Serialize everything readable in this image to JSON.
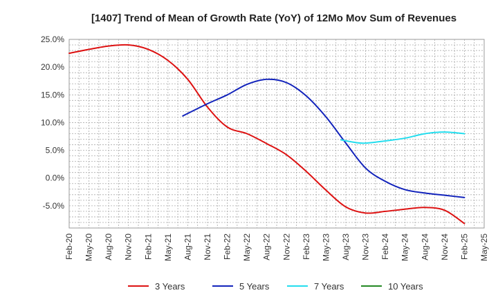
{
  "chart_data": {
    "type": "line",
    "title": "[1407]  Trend of Mean of Growth Rate (YoY) of 12Mo Mov Sum of Revenues",
    "xlabel": "",
    "ylabel": "",
    "x_tick_labels": [
      "Feb-20",
      "May-20",
      "Aug-20",
      "Nov-20",
      "Feb-21",
      "May-21",
      "Aug-21",
      "Nov-21",
      "Feb-22",
      "May-22",
      "Aug-22",
      "Nov-22",
      "Feb-23",
      "May-23",
      "Aug-23",
      "Nov-23",
      "Feb-24",
      "May-24",
      "Aug-24",
      "Nov-24",
      "Feb-25",
      "May-25"
    ],
    "y_tick_labels": [
      "25.0%",
      "20.0%",
      "15.0%",
      "10.0%",
      "5.0%",
      "0.0%",
      "-5.0%"
    ],
    "y_ticks": [
      25,
      20,
      15,
      10,
      5,
      0,
      -5
    ],
    "ylim": [
      -9,
      25
    ],
    "x_count": 22,
    "grid": true,
    "legend_position": "bottom",
    "series": [
      {
        "name": "3 Years",
        "color": "#dd1111",
        "points": [
          [
            0,
            22.5
          ],
          [
            1,
            23.2
          ],
          [
            2,
            23.8
          ],
          [
            3,
            24.0
          ],
          [
            4,
            23.2
          ],
          [
            5,
            21.2
          ],
          [
            6,
            17.8
          ],
          [
            7,
            12.8
          ],
          [
            8,
            9.2
          ],
          [
            9,
            8.0
          ],
          [
            10,
            6.2
          ],
          [
            11,
            4.2
          ],
          [
            12,
            1.2
          ],
          [
            13,
            -2.2
          ],
          [
            14,
            -5.2
          ],
          [
            15,
            -6.3
          ],
          [
            16,
            -6.0
          ],
          [
            17,
            -5.6
          ],
          [
            18,
            -5.3
          ],
          [
            19,
            -5.8
          ],
          [
            20,
            -8.2
          ]
        ]
      },
      {
        "name": "5 Years",
        "color": "#1122bb",
        "points": [
          [
            5.75,
            11.2
          ],
          [
            7,
            13.4
          ],
          [
            8,
            15.0
          ],
          [
            9,
            16.9
          ],
          [
            10,
            17.8
          ],
          [
            11,
            17.2
          ],
          [
            12,
            14.8
          ],
          [
            13,
            11.0
          ],
          [
            14,
            6.3
          ],
          [
            15,
            1.8
          ],
          [
            16,
            -0.6
          ],
          [
            17,
            -2.1
          ],
          [
            18,
            -2.7
          ],
          [
            19,
            -3.1
          ],
          [
            20,
            -3.5
          ]
        ]
      },
      {
        "name": "7 Years",
        "color": "#22ddee",
        "points": [
          [
            13.75,
            6.9
          ],
          [
            14.5,
            6.4
          ],
          [
            15,
            6.3
          ],
          [
            16,
            6.7
          ],
          [
            17,
            7.2
          ],
          [
            18,
            8.0
          ],
          [
            19,
            8.3
          ],
          [
            20,
            8.0
          ]
        ]
      },
      {
        "name": "10 Years",
        "color": "#228822",
        "points": []
      }
    ]
  }
}
